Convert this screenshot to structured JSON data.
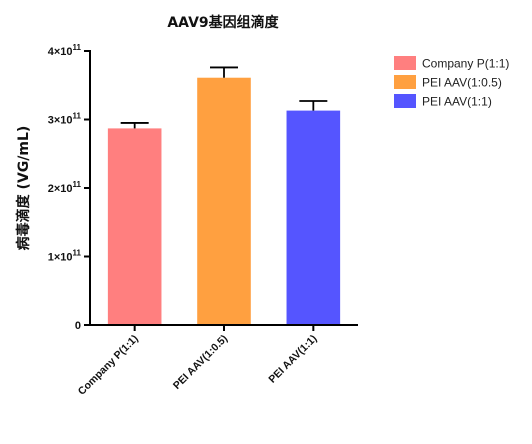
{
  "chart_data": {
    "type": "bar",
    "title": "AAV9基因组滴度",
    "ylabel": "病毒滴度 (VG/mL)",
    "xlabel": "",
    "categories": [
      "Company P(1:1)",
      "PEI AAV(1:0.5)",
      "PEI AAV(1:1)"
    ],
    "values": [
      287000000000.0,
      361000000000.0,
      313000000000.0
    ],
    "errors": [
      8000000000.0,
      15000000000.0,
      14000000000.0
    ],
    "colors": [
      "#FF7F7F",
      "#FFA040",
      "#5555FF"
    ],
    "ylim": [
      0,
      400000000000.0
    ],
    "yticks": [
      {
        "value": 0,
        "mantissa": "0",
        "exp": ""
      },
      {
        "value": 100000000000.0,
        "mantissa": "1×10",
        "exp": "11"
      },
      {
        "value": 200000000000.0,
        "mantissa": "2×10",
        "exp": "11"
      },
      {
        "value": 300000000000.0,
        "mantissa": "3×10",
        "exp": "11"
      },
      {
        "value": 400000000000.0,
        "mantissa": "4×10",
        "exp": "11"
      }
    ],
    "legend": {
      "placement": "top-right",
      "entries": [
        "Company P(1:1)",
        "PEI AAV(1:0.5)",
        "PEI AAV(1:1)"
      ]
    },
    "grid": false
  }
}
